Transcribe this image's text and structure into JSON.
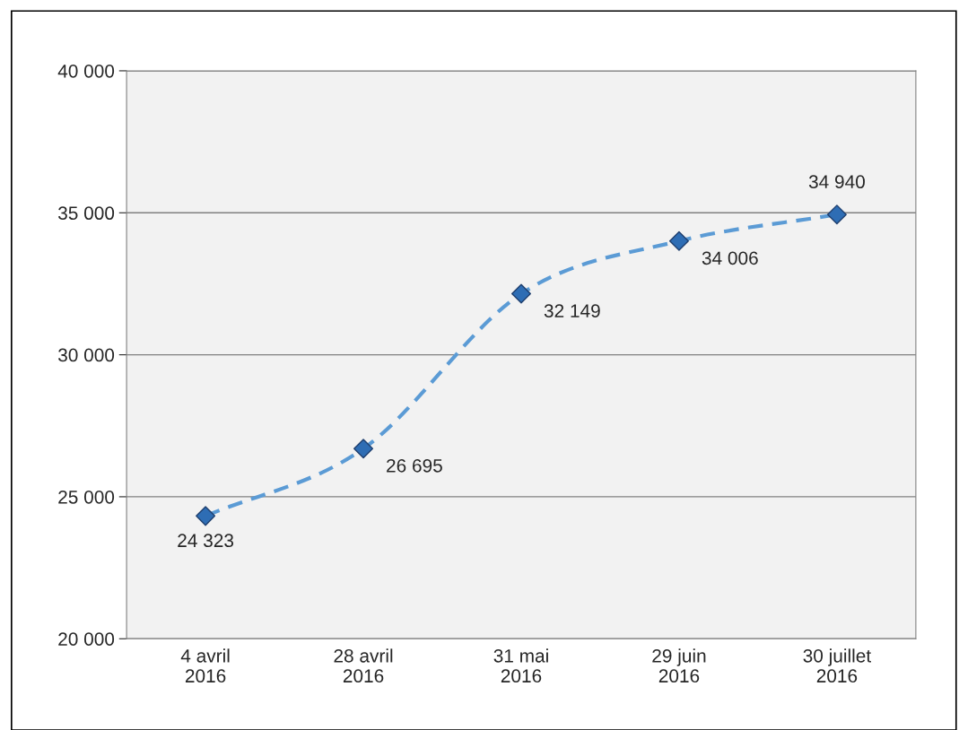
{
  "chart_data": {
    "type": "line",
    "categories": [
      "4 avril\n2016",
      "28 avril\n2016",
      "31 mai\n2016",
      "29 juin\n2016",
      "30 juillet\n2016"
    ],
    "series": [
      {
        "color": "#5b9bd5",
        "values": [
          24323,
          26695,
          32149,
          34006,
          34940
        ]
      }
    ],
    "value_labels": [
      "24 323",
      "26 695",
      "32 149",
      "34 006",
      "34 940"
    ],
    "ylim": [
      20000,
      40000
    ],
    "yticks": [
      {
        "value": 20000,
        "label": "20 000"
      },
      {
        "value": 25000,
        "label": "25 000"
      },
      {
        "value": 30000,
        "label": "30 000"
      },
      {
        "value": 35000,
        "label": "35 000"
      },
      {
        "value": 40000,
        "label": "40 000"
      }
    ],
    "grid": "y",
    "marker": "diamond",
    "line_style": "dashed",
    "legend": false
  }
}
